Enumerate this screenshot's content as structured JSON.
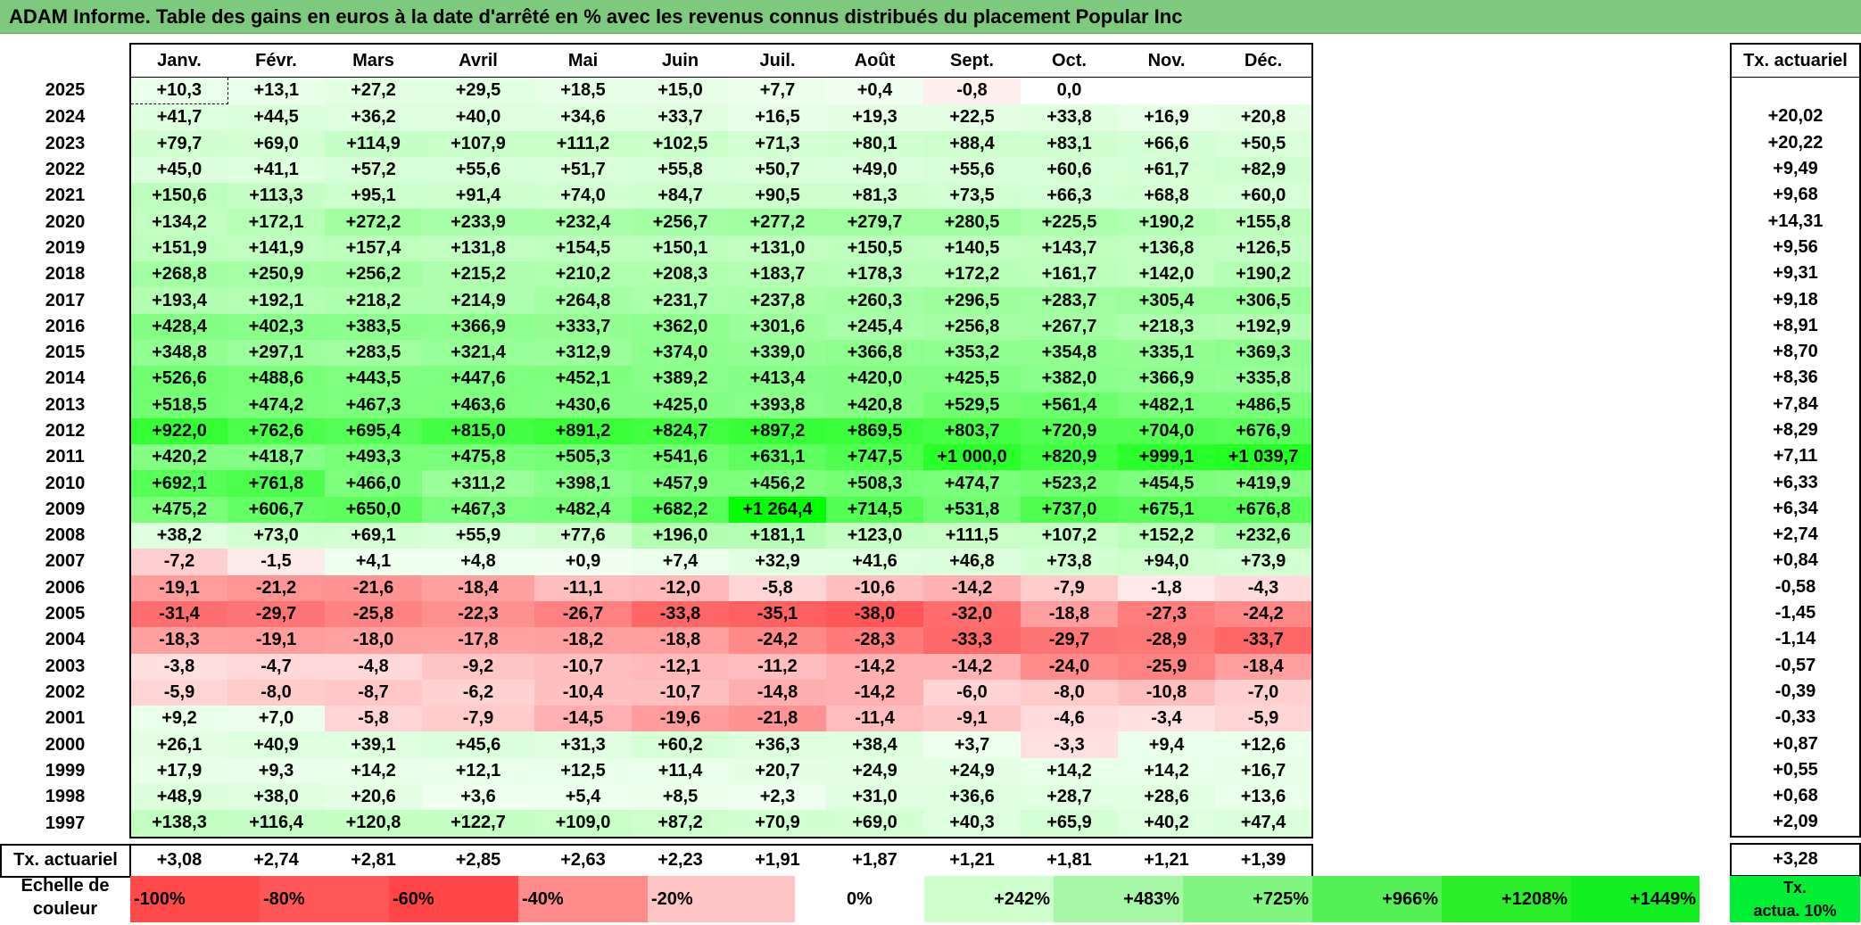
{
  "title": "ADAM Informe. Table des gains en euros à la date d'arrêté en % avec les revenus connus distribués du placement Popular Inc",
  "months": [
    "Janv.",
    "Févr.",
    "Mars",
    "Avril",
    "Mai",
    "Juin",
    "Juil.",
    "Août",
    "Sept.",
    "Oct.",
    "Nov.",
    "Déc."
  ],
  "actuarial_header": "Tx. actuariel",
  "rows": [
    {
      "year": "2025",
      "values": [
        "+10,3",
        "+13,1",
        "+27,2",
        "+29,5",
        "+18,5",
        "+15,0",
        "+7,7",
        "+0,4",
        "-0,8",
        "0,0",
        "",
        ""
      ],
      "rate": ""
    },
    {
      "year": "2024",
      "values": [
        "+41,7",
        "+44,5",
        "+36,2",
        "+40,0",
        "+34,6",
        "+33,7",
        "+16,5",
        "+19,3",
        "+22,5",
        "+33,8",
        "+16,9",
        "+20,8"
      ],
      "rate": "+20,02"
    },
    {
      "year": "2023",
      "values": [
        "+79,7",
        "+69,0",
        "+114,9",
        "+107,9",
        "+111,2",
        "+102,5",
        "+71,3",
        "+80,1",
        "+88,4",
        "+83,1",
        "+66,6",
        "+50,5"
      ],
      "rate": "+20,22"
    },
    {
      "year": "2022",
      "values": [
        "+45,0",
        "+41,1",
        "+57,2",
        "+55,6",
        "+51,7",
        "+55,8",
        "+50,7",
        "+49,0",
        "+55,6",
        "+60,6",
        "+61,7",
        "+82,9"
      ],
      "rate": "+9,49"
    },
    {
      "year": "2021",
      "values": [
        "+150,6",
        "+113,3",
        "+95,1",
        "+91,4",
        "+74,0",
        "+84,7",
        "+90,5",
        "+81,3",
        "+73,5",
        "+66,3",
        "+68,8",
        "+60,0"
      ],
      "rate": "+9,68"
    },
    {
      "year": "2020",
      "values": [
        "+134,2",
        "+172,1",
        "+272,2",
        "+233,9",
        "+232,4",
        "+256,7",
        "+277,2",
        "+279,7",
        "+280,5",
        "+225,5",
        "+190,2",
        "+155,8"
      ],
      "rate": "+14,31"
    },
    {
      "year": "2019",
      "values": [
        "+151,9",
        "+141,9",
        "+157,4",
        "+131,8",
        "+154,5",
        "+150,1",
        "+131,0",
        "+150,5",
        "+140,5",
        "+143,7",
        "+136,8",
        "+126,5"
      ],
      "rate": "+9,56"
    },
    {
      "year": "2018",
      "values": [
        "+268,8",
        "+250,9",
        "+256,2",
        "+215,2",
        "+210,2",
        "+208,3",
        "+183,7",
        "+178,3",
        "+172,2",
        "+161,7",
        "+142,0",
        "+190,2"
      ],
      "rate": "+9,31"
    },
    {
      "year": "2017",
      "values": [
        "+193,4",
        "+192,1",
        "+218,2",
        "+214,9",
        "+264,8",
        "+231,7",
        "+237,8",
        "+260,3",
        "+296,5",
        "+283,7",
        "+305,4",
        "+306,5"
      ],
      "rate": "+9,18"
    },
    {
      "year": "2016",
      "values": [
        "+428,4",
        "+402,3",
        "+383,5",
        "+366,9",
        "+333,7",
        "+362,0",
        "+301,6",
        "+245,4",
        "+256,8",
        "+267,7",
        "+218,3",
        "+192,9"
      ],
      "rate": "+8,91"
    },
    {
      "year": "2015",
      "values": [
        "+348,8",
        "+297,1",
        "+283,5",
        "+321,4",
        "+312,9",
        "+374,0",
        "+339,0",
        "+366,8",
        "+353,2",
        "+354,8",
        "+335,1",
        "+369,3"
      ],
      "rate": "+8,70"
    },
    {
      "year": "2014",
      "values": [
        "+526,6",
        "+488,6",
        "+443,5",
        "+447,6",
        "+452,1",
        "+389,2",
        "+413,4",
        "+420,0",
        "+425,5",
        "+382,0",
        "+366,9",
        "+335,8"
      ],
      "rate": "+8,36"
    },
    {
      "year": "2013",
      "values": [
        "+518,5",
        "+474,2",
        "+467,3",
        "+463,6",
        "+430,6",
        "+425,0",
        "+393,8",
        "+420,8",
        "+529,5",
        "+561,4",
        "+482,1",
        "+486,5"
      ],
      "rate": "+7,84"
    },
    {
      "year": "2012",
      "values": [
        "+922,0",
        "+762,6",
        "+695,4",
        "+815,0",
        "+891,2",
        "+824,7",
        "+897,2",
        "+869,5",
        "+803,7",
        "+720,9",
        "+704,0",
        "+676,9"
      ],
      "rate": "+8,29"
    },
    {
      "year": "2011",
      "values": [
        "+420,2",
        "+418,7",
        "+493,3",
        "+475,8",
        "+505,3",
        "+541,6",
        "+631,1",
        "+747,5",
        "+1 000,0",
        "+820,9",
        "+999,1",
        "+1 039,7"
      ],
      "rate": "+7,11"
    },
    {
      "year": "2010",
      "values": [
        "+692,1",
        "+761,8",
        "+466,0",
        "+311,2",
        "+398,1",
        "+457,9",
        "+456,2",
        "+508,3",
        "+474,7",
        "+523,2",
        "+454,5",
        "+419,9"
      ],
      "rate": "+6,33"
    },
    {
      "year": "2009",
      "values": [
        "+475,2",
        "+606,7",
        "+650,0",
        "+467,3",
        "+482,4",
        "+682,2",
        "+1 264,4",
        "+714,5",
        "+531,8",
        "+737,0",
        "+675,1",
        "+676,8"
      ],
      "rate": "+6,34"
    },
    {
      "year": "2008",
      "values": [
        "+38,2",
        "+73,0",
        "+69,1",
        "+55,9",
        "+77,6",
        "+196,0",
        "+181,1",
        "+123,0",
        "+111,5",
        "+107,2",
        "+152,2",
        "+232,6"
      ],
      "rate": "+2,74"
    },
    {
      "year": "2007",
      "values": [
        "-7,2",
        "-1,5",
        "+4,1",
        "+4,8",
        "+0,9",
        "+7,4",
        "+32,9",
        "+41,6",
        "+46,8",
        "+73,8",
        "+94,0",
        "+73,9"
      ],
      "rate": "+0,84"
    },
    {
      "year": "2006",
      "values": [
        "-19,1",
        "-21,2",
        "-21,6",
        "-18,4",
        "-11,1",
        "-12,0",
        "-5,8",
        "-10,6",
        "-14,2",
        "-7,9",
        "-1,8",
        "-4,3"
      ],
      "rate": "-0,58"
    },
    {
      "year": "2005",
      "values": [
        "-31,4",
        "-29,7",
        "-25,8",
        "-22,3",
        "-26,7",
        "-33,8",
        "-35,1",
        "-38,0",
        "-32,0",
        "-18,8",
        "-27,3",
        "-24,2"
      ],
      "rate": "-1,45"
    },
    {
      "year": "2004",
      "values": [
        "-18,3",
        "-19,1",
        "-18,0",
        "-17,8",
        "-18,2",
        "-18,8",
        "-24,2",
        "-28,3",
        "-33,3",
        "-29,7",
        "-28,9",
        "-33,7"
      ],
      "rate": "-1,14"
    },
    {
      "year": "2003",
      "values": [
        "-3,8",
        "-4,7",
        "-4,8",
        "-9,2",
        "-10,7",
        "-12,1",
        "-11,2",
        "-14,2",
        "-14,2",
        "-24,0",
        "-25,9",
        "-18,4"
      ],
      "rate": "-0,57"
    },
    {
      "year": "2002",
      "values": [
        "-5,9",
        "-8,0",
        "-8,7",
        "-6,2",
        "-10,4",
        "-10,7",
        "-14,8",
        "-14,2",
        "-6,0",
        "-8,0",
        "-10,8",
        "-7,0"
      ],
      "rate": "-0,39"
    },
    {
      "year": "2001",
      "values": [
        "+9,2",
        "+7,0",
        "-5,8",
        "-7,9",
        "-14,5",
        "-19,6",
        "-21,8",
        "-11,4",
        "-9,1",
        "-4,6",
        "-3,4",
        "-5,9"
      ],
      "rate": "-0,33"
    },
    {
      "year": "2000",
      "values": [
        "+26,1",
        "+40,9",
        "+39,1",
        "+45,6",
        "+31,3",
        "+60,2",
        "+36,3",
        "+38,4",
        "+3,7",
        "-3,3",
        "+9,4",
        "+12,6"
      ],
      "rate": "+0,87"
    },
    {
      "year": "1999",
      "values": [
        "+17,9",
        "+9,3",
        "+14,2",
        "+12,1",
        "+12,5",
        "+11,4",
        "+20,7",
        "+24,9",
        "+24,9",
        "+14,2",
        "+14,2",
        "+16,7"
      ],
      "rate": "+0,55"
    },
    {
      "year": "1998",
      "values": [
        "+48,9",
        "+38,0",
        "+20,6",
        "+3,6",
        "+5,4",
        "+8,5",
        "+2,3",
        "+31,0",
        "+36,6",
        "+28,7",
        "+28,6",
        "+13,6"
      ],
      "rate": "+0,68"
    },
    {
      "year": "1997",
      "values": [
        "+138,3",
        "+116,4",
        "+120,8",
        "+122,7",
        "+109,0",
        "+87,2",
        "+70,9",
        "+69,0",
        "+40,3",
        "+65,9",
        "+40,2",
        "+47,4"
      ],
      "rate": "+2,09"
    }
  ],
  "actuarial_row": {
    "label": "Tx. actuariel",
    "values": [
      "+3,08",
      "+2,74",
      "+2,81",
      "+2,85",
      "+2,63",
      "+2,23",
      "+1,91",
      "+1,87",
      "+1,21",
      "+1,81",
      "+1,21",
      "+1,39"
    ],
    "total": "+3,28"
  },
  "scale": {
    "label_line1": "Echelle de",
    "label_line2": "couleur",
    "items": [
      {
        "label": "-100%",
        "color": "#ff4a4a"
      },
      {
        "label": "-80%",
        "color": "#ff5757"
      },
      {
        "label": "-60%",
        "color": "#ff4545"
      },
      {
        "label": "-40%",
        "color": "#ff8a8a"
      },
      {
        "label": "-20%",
        "color": "#ffc4c4"
      },
      {
        "label": "0%",
        "color": "#ffffff"
      },
      {
        "label": "+242%",
        "color": "#ccffcc"
      },
      {
        "label": "+483%",
        "color": "#a6f7a6"
      },
      {
        "label": "+725%",
        "color": "#80f580"
      },
      {
        "label": "+966%",
        "color": "#55f055"
      },
      {
        "label": "+1208%",
        "color": "#2aee2a"
      },
      {
        "label": "+1449%",
        "color": "#11ee22"
      }
    ],
    "target_line1": "Tx.",
    "target_line2": "actua. 10%",
    "target_color": "#00ee33"
  },
  "colors": {
    "title_bg": "#7dc97d",
    "positive_max": "#00ff00",
    "negative_max": "#ff5050"
  }
}
